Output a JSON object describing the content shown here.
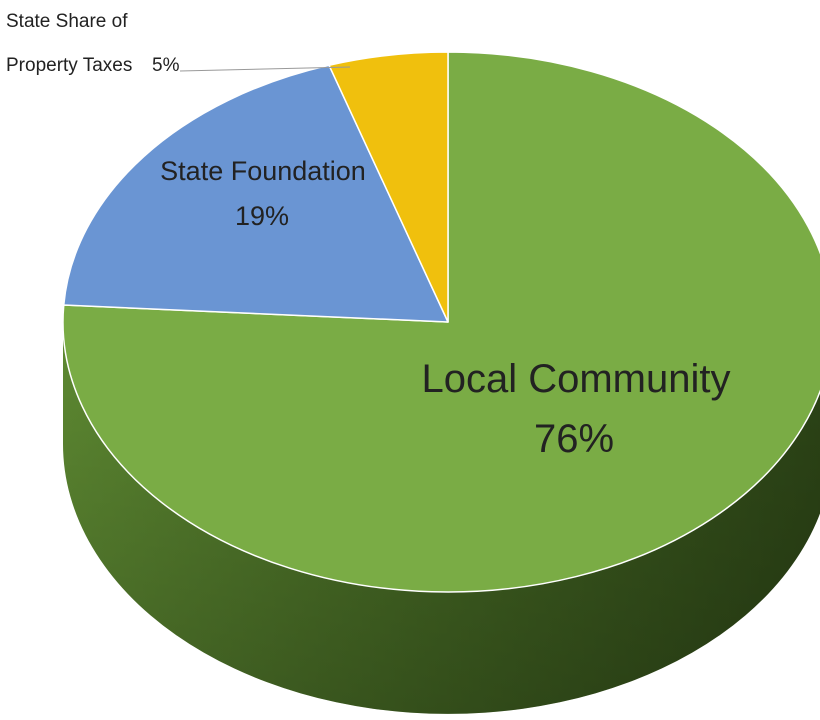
{
  "chart_data": {
    "type": "pie",
    "style": "3d",
    "title": "",
    "slices": [
      {
        "label": "Local Community",
        "value": 76,
        "display": "76%",
        "color": "#7aac45"
      },
      {
        "label": "State Foundation",
        "value": 19,
        "display": "19%",
        "color": "#6a95d3"
      },
      {
        "label": "State Share of Property Taxes",
        "value": 5,
        "display": "5%",
        "color": "#f0c00d"
      }
    ],
    "callout": {
      "line1": "State Share of",
      "line2": "Property Taxes",
      "value": "5%"
    },
    "legend": "none"
  }
}
